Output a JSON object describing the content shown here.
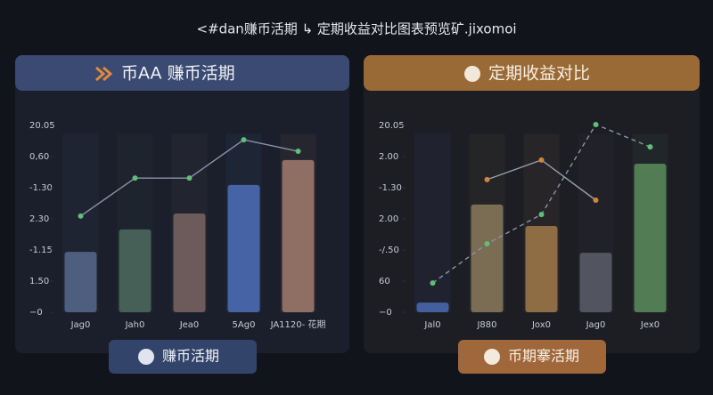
{
  "title": "<#dan赚币活期 ↳ 定期收益对比图表预览矿.jixomoi",
  "chart_data": [
    {
      "type": "bar",
      "title": "币AA 赚币活期",
      "button": "赚币活期",
      "categories": [
        "Jag0",
        "Jah0",
        "Jea0",
        "5Ag0",
        "JA1120- 花期"
      ],
      "values": [
        1.94,
        2.66,
        3.17,
        4.09,
        4.89
      ],
      "colors": [
        "#56688c",
        "#4e6a5e",
        "#7a6462",
        "#4d70b8",
        "#a27c6c"
      ],
      "ylim": [
        0,
        6.3
      ],
      "yticks": [
        {
          "value": 0,
          "label": "−0"
        },
        {
          "value": 1,
          "label": "1.50"
        },
        {
          "value": 2,
          "label": "-1.15"
        },
        {
          "value": 3,
          "label": "2.30"
        },
        {
          "value": 4,
          "label": "-1.30"
        },
        {
          "value": 5,
          "label": "0,60"
        },
        {
          "value": 6,
          "label": "20.05"
        }
      ],
      "series": [
        {
          "color": "#8a93a8",
          "dot": "#5fbf7a",
          "dashed": false,
          "values": [
            3.09,
            4.31,
            4.31,
            5.54,
            5.17
          ]
        }
      ]
    },
    {
      "type": "bar",
      "title": "定期收益对比",
      "button": "币期搴活期",
      "categories": [
        "Jal0",
        "J880",
        "Jox0",
        "Jag0",
        "Jex0"
      ],
      "values": [
        0.31,
        3.46,
        2.77,
        1.91,
        4.77
      ],
      "colors": [
        "#4a6ab4",
        "#8a7a5c",
        "#a27a4a",
        "#5a5e6a",
        "#5a8c5a"
      ],
      "ylim": [
        0,
        6.3
      ],
      "yticks": [
        {
          "value": 0,
          "label": "−0"
        },
        {
          "value": 1,
          "label": "60"
        },
        {
          "value": 2,
          "label": "-/.50"
        },
        {
          "value": 3,
          "label": "2.00"
        },
        {
          "value": 4,
          "label": "-1.30"
        },
        {
          "value": 5,
          "label": "2.00"
        },
        {
          "value": 6,
          "label": "20.05"
        }
      ],
      "series": [
        {
          "color": "#9aa0ae",
          "dot": "#d0843c",
          "dashed": false,
          "values": [
            null,
            4.26,
            4.89,
            3.6,
            null
          ]
        },
        {
          "color": "#8a93a8",
          "dot": "#5fbf7a",
          "dashed": true,
          "values": [
            0.94,
            2.2,
            3.14,
            6.03,
            5.31
          ]
        }
      ]
    }
  ]
}
